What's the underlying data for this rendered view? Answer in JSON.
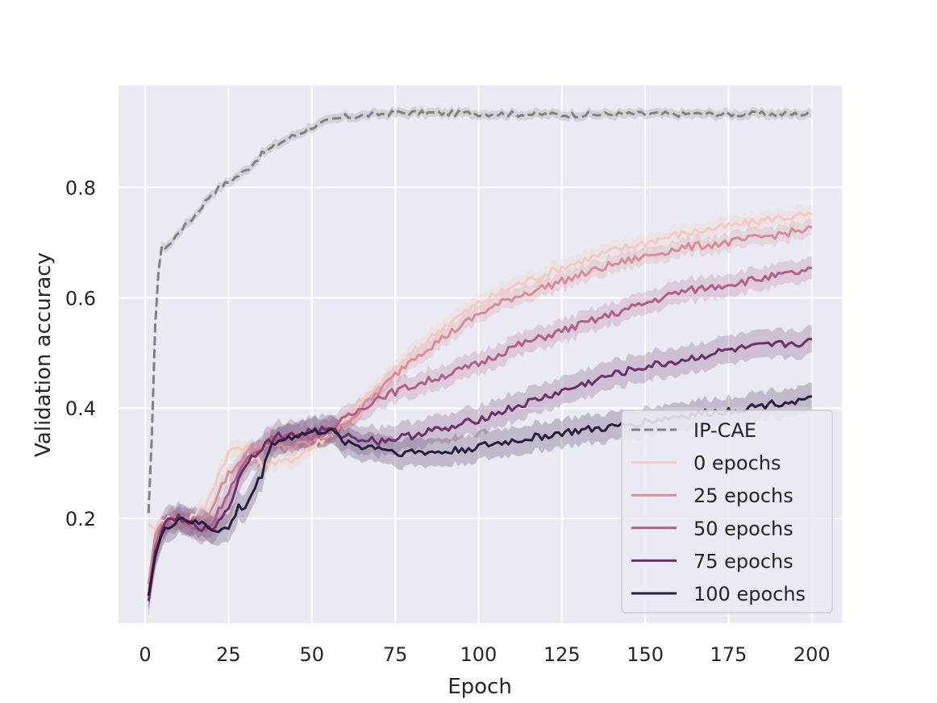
{
  "chart_data": {
    "type": "line",
    "title": "",
    "xlabel": "Epoch",
    "ylabel": "Validation accuracy",
    "xlim": [
      -8,
      209
    ],
    "ylim": [
      0.01,
      0.985
    ],
    "xticks": [
      0,
      25,
      50,
      75,
      100,
      125,
      150,
      175,
      200
    ],
    "xtick_labels": [
      "0",
      "25",
      "50",
      "75",
      "100",
      "125",
      "150",
      "175",
      "200"
    ],
    "yticks": [
      0.2,
      0.4,
      0.6,
      0.8
    ],
    "ytick_labels": [
      "0.2",
      "0.4",
      "0.6",
      "0.8"
    ],
    "grid": true,
    "legend_position": "lower-right",
    "series": [
      {
        "name": "IP-CAE",
        "color": "#808080",
        "dashed": true,
        "x": [
          1,
          2,
          3,
          4,
          5,
          8,
          10,
          12,
          15,
          20,
          25,
          30,
          35,
          40,
          45,
          50,
          55,
          60,
          65,
          70,
          75,
          80,
          100,
          125,
          150,
          175,
          200
        ],
        "y": [
          0.21,
          0.35,
          0.55,
          0.65,
          0.69,
          0.7,
          0.72,
          0.73,
          0.75,
          0.79,
          0.81,
          0.83,
          0.86,
          0.88,
          0.895,
          0.91,
          0.92,
          0.928,
          0.93,
          0.933,
          0.935,
          0.935,
          0.934,
          0.932,
          0.933,
          0.933,
          0.933
        ],
        "band": 0.008
      },
      {
        "name": "0 epochs",
        "color": "#f3cbc0",
        "dashed": false,
        "x": [
          1,
          3,
          5,
          8,
          10,
          12,
          15,
          18,
          20,
          22,
          25,
          28,
          30,
          35,
          40,
          45,
          50,
          55,
          60,
          65,
          70,
          75,
          80,
          90,
          100,
          110,
          125,
          140,
          150,
          160,
          175,
          190,
          200
        ],
        "y": [
          0.19,
          0.18,
          0.2,
          0.2,
          0.2,
          0.195,
          0.21,
          0.22,
          0.25,
          0.28,
          0.32,
          0.33,
          0.32,
          0.3,
          0.3,
          0.31,
          0.33,
          0.35,
          0.38,
          0.41,
          0.44,
          0.47,
          0.5,
          0.55,
          0.59,
          0.62,
          0.655,
          0.685,
          0.7,
          0.715,
          0.73,
          0.745,
          0.75
        ],
        "band": 0.015
      },
      {
        "name": "25 epochs",
        "color": "#d78d98",
        "dashed": false,
        "x": [
          1,
          3,
          5,
          8,
          10,
          12,
          15,
          18,
          20,
          22,
          25,
          28,
          30,
          35,
          40,
          45,
          50,
          55,
          60,
          65,
          70,
          75,
          80,
          90,
          100,
          110,
          125,
          140,
          150,
          160,
          175,
          190,
          200
        ],
        "y": [
          0.08,
          0.17,
          0.19,
          0.2,
          0.2,
          0.195,
          0.19,
          0.2,
          0.22,
          0.25,
          0.28,
          0.3,
          0.32,
          0.33,
          0.33,
          0.33,
          0.34,
          0.35,
          0.37,
          0.4,
          0.43,
          0.46,
          0.49,
          0.53,
          0.57,
          0.6,
          0.63,
          0.66,
          0.675,
          0.69,
          0.7,
          0.715,
          0.725
        ],
        "band": 0.015
      },
      {
        "name": "50 epochs",
        "color": "#b05f8c",
        "dashed": false,
        "x": [
          1,
          3,
          5,
          8,
          10,
          12,
          15,
          18,
          20,
          25,
          30,
          35,
          40,
          45,
          50,
          55,
          60,
          65,
          70,
          75,
          80,
          90,
          100,
          110,
          125,
          140,
          150,
          160,
          175,
          190,
          200
        ],
        "y": [
          0.06,
          0.15,
          0.18,
          0.2,
          0.2,
          0.19,
          0.18,
          0.18,
          0.19,
          0.25,
          0.3,
          0.33,
          0.35,
          0.35,
          0.35,
          0.36,
          0.38,
          0.4,
          0.42,
          0.43,
          0.44,
          0.46,
          0.48,
          0.51,
          0.54,
          0.57,
          0.59,
          0.61,
          0.625,
          0.64,
          0.65
        ],
        "band": 0.02
      },
      {
        "name": "75 epochs",
        "color": "#6b2f6a",
        "dashed": false,
        "x": [
          1,
          3,
          5,
          8,
          10,
          12,
          15,
          18,
          20,
          25,
          30,
          35,
          40,
          45,
          50,
          55,
          60,
          65,
          70,
          75,
          80,
          85,
          90,
          100,
          110,
          125,
          140,
          150,
          160,
          175,
          190,
          200
        ],
        "y": [
          0.05,
          0.14,
          0.18,
          0.2,
          0.2,
          0.19,
          0.19,
          0.18,
          0.18,
          0.22,
          0.3,
          0.33,
          0.35,
          0.35,
          0.36,
          0.36,
          0.35,
          0.345,
          0.34,
          0.345,
          0.35,
          0.36,
          0.36,
          0.38,
          0.4,
          0.43,
          0.46,
          0.475,
          0.485,
          0.505,
          0.515,
          0.52
        ],
        "band": 0.025
      },
      {
        "name": "100 epochs",
        "color": "#2d1b3f",
        "dashed": false,
        "x": [
          1,
          3,
          5,
          8,
          10,
          12,
          15,
          18,
          20,
          22,
          25,
          28,
          30,
          35,
          38,
          40,
          45,
          50,
          55,
          60,
          65,
          70,
          75,
          80,
          85,
          90,
          100,
          110,
          125,
          140,
          150,
          160,
          175,
          190,
          200
        ],
        "y": [
          0.06,
          0.13,
          0.17,
          0.19,
          0.2,
          0.2,
          0.19,
          0.19,
          0.18,
          0.18,
          0.18,
          0.22,
          0.22,
          0.28,
          0.34,
          0.34,
          0.35,
          0.355,
          0.36,
          0.34,
          0.33,
          0.33,
          0.32,
          0.32,
          0.32,
          0.32,
          0.33,
          0.34,
          0.355,
          0.365,
          0.375,
          0.385,
          0.395,
          0.41,
          0.415
        ],
        "band": 0.025
      }
    ]
  }
}
